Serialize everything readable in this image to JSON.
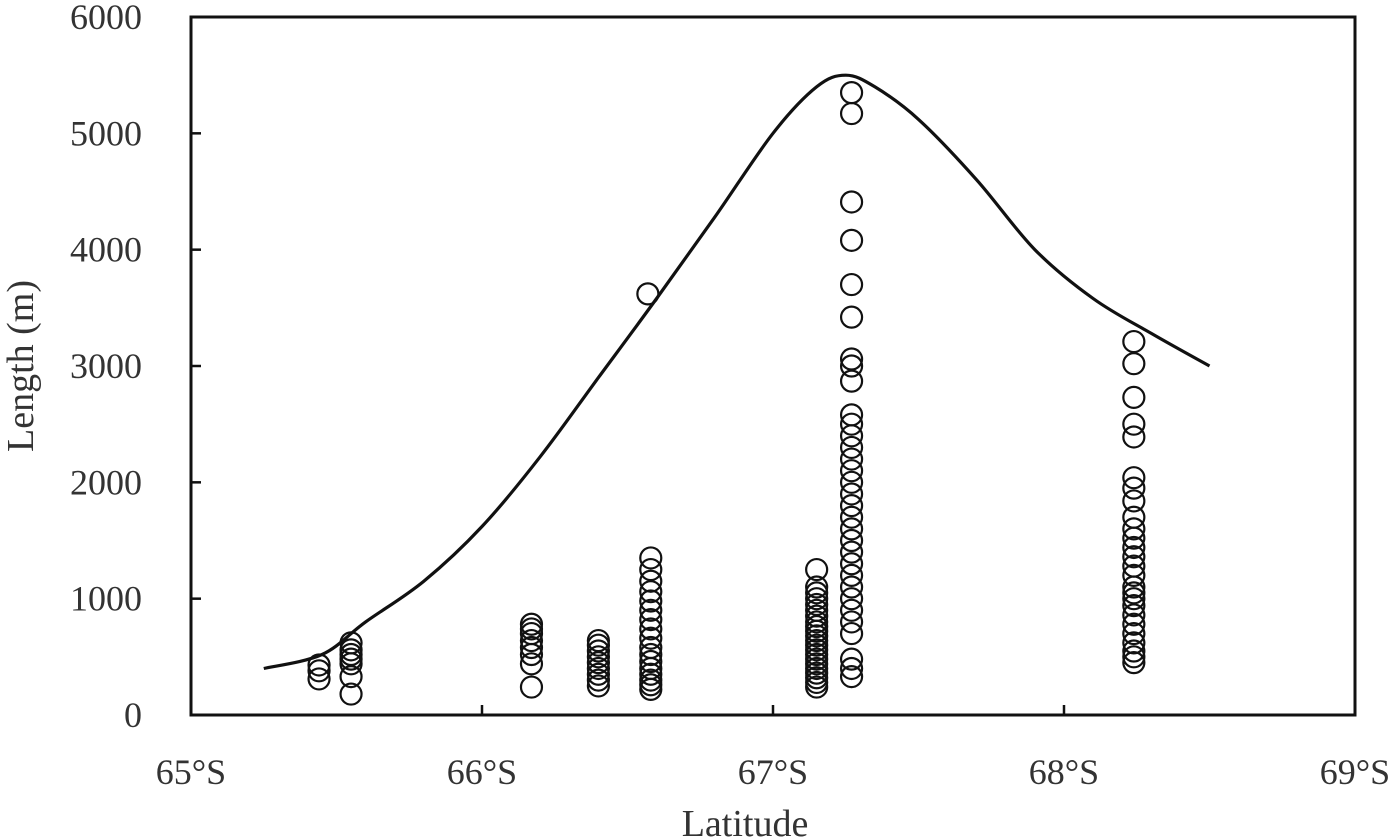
{
  "chart_data": {
    "type": "scatter",
    "title": "",
    "xlabel": "Latitude",
    "ylabel": "Length (m)",
    "xlim": [
      65,
      69
    ],
    "ylim": [
      0,
      6000
    ],
    "grid": false,
    "x_ticks": [
      {
        "value": 65,
        "label": "65°S"
      },
      {
        "value": 66,
        "label": "66°S"
      },
      {
        "value": 67,
        "label": "67°S"
      },
      {
        "value": 68,
        "label": "68°S"
      },
      {
        "value": 69,
        "label": "69°S"
      }
    ],
    "y_ticks": [
      {
        "value": 0,
        "label": "0"
      },
      {
        "value": 1000,
        "label": "1000"
      },
      {
        "value": 2000,
        "label": "2000"
      },
      {
        "value": 3000,
        "label": "3000"
      },
      {
        "value": 4000,
        "label": "4000"
      },
      {
        "value": 5000,
        "label": "5000"
      },
      {
        "value": 6000,
        "label": "6000"
      }
    ],
    "groups": [
      {
        "x": 65.44,
        "y": [
          310,
          380,
          430
        ]
      },
      {
        "x": 65.55,
        "y": [
          180,
          330,
          440,
          480,
          520,
          560,
          620
        ]
      },
      {
        "x": 66.17,
        "y": [
          240,
          440,
          520,
          580,
          640,
          700,
          740,
          780
        ]
      },
      {
        "x": 66.4,
        "y": [
          250,
          300,
          350,
          400,
          450,
          500,
          550,
          600,
          640
        ]
      },
      {
        "x": 66.57,
        "y": [
          3620
        ]
      },
      {
        "x": 66.58,
        "y": [
          220,
          260,
          300,
          350,
          400,
          460,
          520,
          580,
          660,
          740,
          820,
          900,
          980,
          1060,
          1150,
          1250,
          1350
        ]
      },
      {
        "x": 67.15,
        "y": [
          240,
          280,
          320,
          360,
          400,
          440,
          480,
          520,
          560,
          600,
          640,
          680,
          720,
          760,
          800,
          850,
          900,
          950,
          1000,
          1050,
          1100,
          1250
        ]
      },
      {
        "x": 67.27,
        "y": [
          330,
          400,
          480,
          700,
          800,
          900,
          1000,
          1100,
          1200,
          1300,
          1400,
          1500,
          1600,
          1700,
          1800,
          1900,
          2000,
          2100,
          2200,
          2300,
          2400,
          2500,
          2580,
          2870,
          3000,
          3060,
          3420,
          3700,
          4080,
          4410,
          5170,
          5350
        ]
      },
      {
        "x": 68.24,
        "y": [
          450,
          500,
          550,
          620,
          700,
          780,
          860,
          940,
          1000,
          1050,
          1100,
          1200,
          1280,
          1360,
          1440,
          1520,
          1600,
          1700,
          1840,
          1950,
          2040,
          2390,
          2500,
          2730,
          3020,
          3210
        ]
      }
    ],
    "envelope": {
      "x": [
        65.25,
        65.45,
        65.6,
        65.8,
        66.0,
        66.2,
        66.4,
        66.6,
        66.8,
        67.0,
        67.15,
        67.25,
        67.35,
        67.5,
        67.7,
        67.9,
        68.1,
        68.3,
        68.5
      ],
      "y": [
        400,
        520,
        800,
        1150,
        1620,
        2220,
        2900,
        3580,
        4280,
        5000,
        5400,
        5500,
        5400,
        5120,
        4600,
        4000,
        3580,
        3280,
        3000
      ]
    }
  }
}
